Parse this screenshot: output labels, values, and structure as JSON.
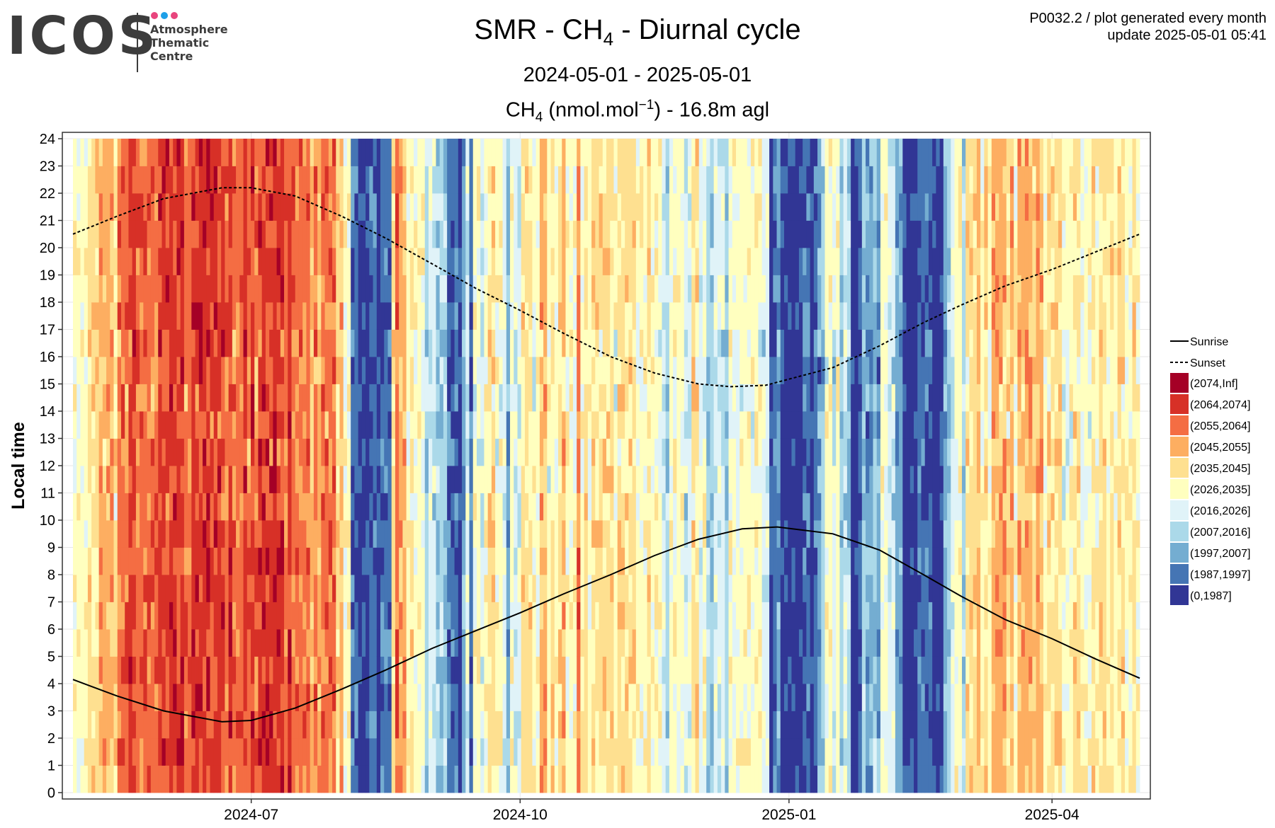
{
  "header": {
    "logo_text": "ICOS",
    "logo_subtitle": [
      "Atmosphere",
      "Thematic",
      "Centre"
    ],
    "logo_dot_colors": [
      "#e8457d",
      "#1ea0e8",
      "#e8457d"
    ],
    "product_code": "P0032.2 / plot generated every month",
    "update": "update  2025-05-01 05:41"
  },
  "chart_data": {
    "type": "heatmap",
    "title": {
      "prefix": "SMR - CH",
      "sub": "4",
      "suffix": " - Diurnal cycle"
    },
    "period": "2024-05-01 - 2025-05-01",
    "subtitle": {
      "a": "CH",
      "a_sub": "4",
      "b": " (nmol.mol",
      "b_sup": "−1",
      "c": ") - 16.8m agl"
    },
    "ylabel": "Local time",
    "x_range": [
      "2024-05-01",
      "2025-05-01"
    ],
    "y_range": [
      0,
      24
    ],
    "y_ticks": [
      "0",
      "1",
      "2",
      "3",
      "4",
      "5",
      "6",
      "7",
      "8",
      "9",
      "10",
      "11",
      "12",
      "13",
      "14",
      "15",
      "16",
      "17",
      "18",
      "19",
      "20",
      "21",
      "22",
      "23",
      "24"
    ],
    "x_ticks": [
      {
        "date": "2024-07-01",
        "label": "2024-07"
      },
      {
        "date": "2024-10-01",
        "label": "2024-10"
      },
      {
        "date": "2025-01-01",
        "label": "2025-01"
      },
      {
        "date": "2025-04-01",
        "label": "2025-04"
      }
    ],
    "grid": true,
    "legend_position": "right",
    "color_bins": [
      {
        "label": "(2074,Inf]",
        "color": "#a50026"
      },
      {
        "label": "(2064,2074]",
        "color": "#d73027"
      },
      {
        "label": "(2055,2064]",
        "color": "#f46d43"
      },
      {
        "label": "(2045,2055]",
        "color": "#fdae61"
      },
      {
        "label": "(2035,2045]",
        "color": "#fee090"
      },
      {
        "label": "(2026,2035]",
        "color": "#ffffbf"
      },
      {
        "label": "(2016,2026]",
        "color": "#e0f3f8"
      },
      {
        "label": "(2007,2016]",
        "color": "#abd9e9"
      },
      {
        "label": "(1997,2007]",
        "color": "#74add1"
      },
      {
        "label": "(1987,1997]",
        "color": "#4575b4"
      },
      {
        "label": "(0,1987]",
        "color": "#313695"
      }
    ],
    "daily_level_sequence": "555566677776888998888889999999889999999998988898989999999898888878788886755110001101116877565553443331110241554566554254466655775656755585656666665666665556555435555446645334443555555555440120000001101235545343001322325544220000111100023455366675657777675777767756666555665556566565665565",
    "series": [
      {
        "name": "Sunrise",
        "dash": "solid",
        "points": [
          {
            "date": "2024-05-01",
            "hour": 4.15
          },
          {
            "date": "2024-05-16",
            "hour": 3.55
          },
          {
            "date": "2024-06-01",
            "hour": 3.0
          },
          {
            "date": "2024-06-21",
            "hour": 2.6
          },
          {
            "date": "2024-07-01",
            "hour": 2.65
          },
          {
            "date": "2024-07-16",
            "hour": 3.1
          },
          {
            "date": "2024-08-01",
            "hour": 3.8
          },
          {
            "date": "2024-08-16",
            "hour": 4.5
          },
          {
            "date": "2024-09-01",
            "hour": 5.3
          },
          {
            "date": "2024-09-16",
            "hour": 5.95
          },
          {
            "date": "2024-10-01",
            "hour": 6.6
          },
          {
            "date": "2024-10-16",
            "hour": 7.3
          },
          {
            "date": "2024-11-01",
            "hour": 8.0
          },
          {
            "date": "2024-11-16",
            "hour": 8.7
          },
          {
            "date": "2024-12-01",
            "hour": 9.3
          },
          {
            "date": "2024-12-16",
            "hour": 9.68
          },
          {
            "date": "2024-12-28",
            "hour": 9.75
          },
          {
            "date": "2025-01-16",
            "hour": 9.5
          },
          {
            "date": "2025-02-01",
            "hour": 8.9
          },
          {
            "date": "2025-02-16",
            "hour": 8.0
          },
          {
            "date": "2025-03-01",
            "hour": 7.2
          },
          {
            "date": "2025-03-16",
            "hour": 6.35
          },
          {
            "date": "2025-04-01",
            "hour": 5.65
          },
          {
            "date": "2025-04-16",
            "hour": 4.9
          },
          {
            "date": "2025-05-01",
            "hour": 4.2
          }
        ]
      },
      {
        "name": "Sunset",
        "dash": "dashed",
        "points": [
          {
            "date": "2024-05-01",
            "hour": 20.5
          },
          {
            "date": "2024-05-16",
            "hour": 21.15
          },
          {
            "date": "2024-06-01",
            "hour": 21.8
          },
          {
            "date": "2024-06-21",
            "hour": 22.2
          },
          {
            "date": "2024-07-01",
            "hour": 22.2
          },
          {
            "date": "2024-07-16",
            "hour": 21.9
          },
          {
            "date": "2024-08-01",
            "hour": 21.15
          },
          {
            "date": "2024-08-16",
            "hour": 20.35
          },
          {
            "date": "2024-09-01",
            "hour": 19.4
          },
          {
            "date": "2024-09-16",
            "hour": 18.5
          },
          {
            "date": "2024-10-01",
            "hour": 17.7
          },
          {
            "date": "2024-10-16",
            "hour": 16.85
          },
          {
            "date": "2024-11-01",
            "hour": 16.0
          },
          {
            "date": "2024-11-16",
            "hour": 15.4
          },
          {
            "date": "2024-12-01",
            "hour": 15.0
          },
          {
            "date": "2024-12-12",
            "hour": 14.9
          },
          {
            "date": "2024-12-24",
            "hour": 14.95
          },
          {
            "date": "2025-01-16",
            "hour": 15.6
          },
          {
            "date": "2025-02-01",
            "hour": 16.4
          },
          {
            "date": "2025-02-16",
            "hour": 17.25
          },
          {
            "date": "2025-03-01",
            "hour": 17.9
          },
          {
            "date": "2025-03-16",
            "hour": 18.6
          },
          {
            "date": "2025-04-01",
            "hour": 19.2
          },
          {
            "date": "2025-04-16",
            "hour": 19.85
          },
          {
            "date": "2025-05-01",
            "hour": 20.5
          }
        ]
      }
    ]
  }
}
